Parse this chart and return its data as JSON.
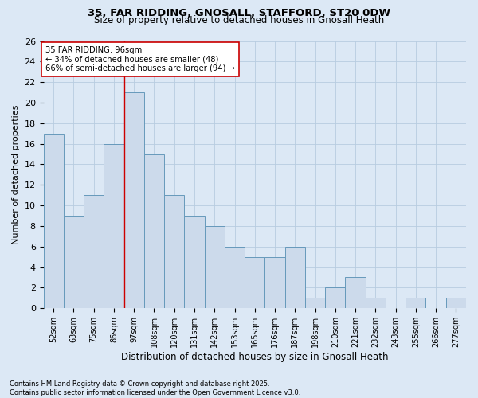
{
  "title_line1": "35, FAR RIDDING, GNOSALL, STAFFORD, ST20 0DW",
  "title_line2": "Size of property relative to detached houses in Gnosall Heath",
  "xlabel": "Distribution of detached houses by size in Gnosall Heath",
  "ylabel": "Number of detached properties",
  "categories": [
    "52sqm",
    "63sqm",
    "75sqm",
    "86sqm",
    "97sqm",
    "108sqm",
    "120sqm",
    "131sqm",
    "142sqm",
    "153sqm",
    "165sqm",
    "176sqm",
    "187sqm",
    "198sqm",
    "210sqm",
    "221sqm",
    "232sqm",
    "243sqm",
    "255sqm",
    "266sqm",
    "277sqm"
  ],
  "values": [
    17,
    9,
    11,
    16,
    21,
    15,
    11,
    9,
    8,
    6,
    5,
    5,
    6,
    1,
    2,
    3,
    1,
    0,
    1,
    0,
    1
  ],
  "bar_color": "#ccdaeb",
  "bar_edge_color": "#6699bb",
  "ylim": [
    0,
    26
  ],
  "yticks": [
    0,
    2,
    4,
    6,
    8,
    10,
    12,
    14,
    16,
    18,
    20,
    22,
    24,
    26
  ],
  "vline_x": 3.5,
  "vline_color": "#cc0000",
  "annotation_text": "35 FAR RIDDING: 96sqm\n← 34% of detached houses are smaller (48)\n66% of semi-detached houses are larger (94) →",
  "annotation_box_color": "#ffffff",
  "annotation_box_edge_color": "#cc0000",
  "footer_text": "Contains HM Land Registry data © Crown copyright and database right 2025.\nContains public sector information licensed under the Open Government Licence v3.0.",
  "bg_color": "#dce8f5",
  "plot_bg_color": "#dce8f5",
  "grid_color": "#b8cce0"
}
